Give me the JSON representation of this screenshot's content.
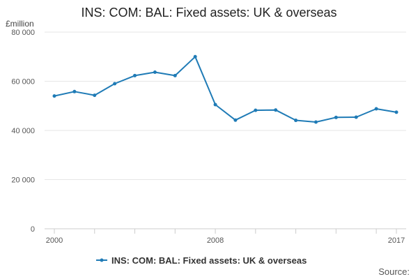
{
  "chart_data": {
    "type": "line",
    "title": "INS: COM: BAL: Fixed assets: UK & overseas",
    "ylabel": "£million",
    "xlabel": "",
    "x": [
      2000,
      2001,
      2002,
      2003,
      2004,
      2005,
      2006,
      2007,
      2008,
      2009,
      2010,
      2011,
      2012,
      2013,
      2014,
      2015,
      2016,
      2017
    ],
    "x_tick_labels": [
      {
        "value": 2000,
        "label": "2000"
      },
      {
        "value": 2008,
        "label": "2008"
      },
      {
        "value": 2017,
        "label": "2017"
      }
    ],
    "x_tick_marks": [
      2000,
      2002,
      2004,
      2006,
      2008,
      2010,
      2012,
      2014,
      2016,
      2017
    ],
    "xlim": [
      2000,
      2017
    ],
    "ylim": [
      0,
      80000
    ],
    "y_ticks": [
      {
        "value": 0,
        "label": "0"
      },
      {
        "value": 20000,
        "label": "20 000"
      },
      {
        "value": 40000,
        "label": "40 000"
      },
      {
        "value": 60000,
        "label": "60 000"
      },
      {
        "value": 80000,
        "label": "80 000"
      }
    ],
    "grid": "horizontal",
    "series": [
      {
        "name": "INS: COM: BAL: Fixed assets: UK & overseas",
        "color": "#1f7bb6",
        "values": [
          54000,
          55800,
          54300,
          59000,
          62300,
          63700,
          62300,
          70000,
          50500,
          44200,
          48200,
          48300,
          44100,
          43400,
          45300,
          45400,
          48800,
          47400
        ]
      }
    ],
    "legend_position": "bottom",
    "source_label": "Source:"
  }
}
